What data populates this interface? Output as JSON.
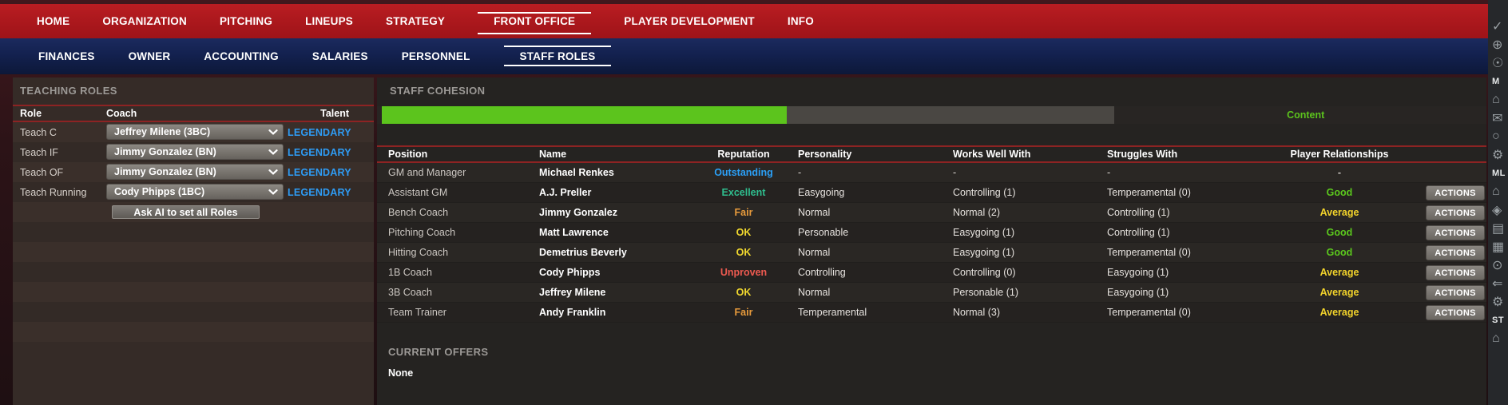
{
  "colors": {
    "nav_red": "#b91d22",
    "nav_navy": "#13214f",
    "sep_red": "#8d2323",
    "panel_left": "#352b27",
    "panel_right": "#252321",
    "bar_green": "#5cc41d",
    "bar_track": "#4a4743",
    "content_green": "#5cc41d",
    "legendary_blue": "#2e9cf5",
    "title_gray": "#9c9996"
  },
  "nav_primary": {
    "items": [
      {
        "label": "HOME"
      },
      {
        "label": "ORGANIZATION"
      },
      {
        "label": "PITCHING"
      },
      {
        "label": "LINEUPS"
      },
      {
        "label": "STRATEGY"
      },
      {
        "label": "FRONT OFFICE",
        "active": true
      },
      {
        "label": "PLAYER DEVELOPMENT"
      },
      {
        "label": "INFO"
      }
    ]
  },
  "nav_secondary": {
    "items": [
      {
        "label": "FINANCES"
      },
      {
        "label": "OWNER"
      },
      {
        "label": "ACCOUNTING"
      },
      {
        "label": "SALARIES"
      },
      {
        "label": "PERSONNEL"
      },
      {
        "label": "STAFF ROLES",
        "active": true
      }
    ]
  },
  "teaching_roles": {
    "title": "TEACHING ROLES",
    "columns": {
      "role": "Role",
      "coach": "Coach",
      "talent": "Talent"
    },
    "rows": [
      {
        "role": "Teach C",
        "coach": "Jeffrey Milene (3BC)",
        "talent": "LEGENDARY"
      },
      {
        "role": "Teach IF",
        "coach": "Jimmy Gonzalez (BN)",
        "talent": "LEGENDARY"
      },
      {
        "role": "Teach OF",
        "coach": "Jimmy Gonzalez (BN)",
        "talent": "LEGENDARY"
      },
      {
        "role": "Teach Running",
        "coach": "Cody Phipps (1BC)",
        "talent": "LEGENDARY"
      }
    ],
    "ai_button": "Ask AI to set all Roles"
  },
  "staff_cohesion": {
    "title": "STAFF COHESION",
    "bar": {
      "fill_pct": 36.8,
      "track_pct": 29.8,
      "status_label": "Content"
    }
  },
  "staff_table": {
    "columns": {
      "position": "Position",
      "name": "Name",
      "reputation": "Reputation",
      "personality": "Personality",
      "works_well_with": "Works Well With",
      "struggles_with": "Struggles With",
      "player_relationships": "Player Relationships"
    },
    "actions_label": "ACTIONS",
    "rows": [
      {
        "position": "GM and Manager",
        "name": "Michael Renkes",
        "reputation": "Outstanding",
        "reputation_color": "#2ba0f7",
        "personality": "-",
        "works_well_with": "-",
        "struggles_with": "-",
        "player_relationships": "-",
        "relationship_color": "#c9c5c1",
        "actions": false
      },
      {
        "position": "Assistant GM",
        "name": "A.J. Preller",
        "reputation": "Excellent",
        "reputation_color": "#2fbe8e",
        "personality": "Easygoing",
        "works_well_with": "Controlling (1)",
        "struggles_with": "Temperamental (0)",
        "player_relationships": "Good",
        "relationship_color": "#5bc71d",
        "actions": true
      },
      {
        "position": "Bench Coach",
        "name": "Jimmy Gonzalez",
        "reputation": "Fair",
        "reputation_color": "#e89b3c",
        "personality": "Normal",
        "works_well_with": "Normal (2)",
        "struggles_with": "Controlling (1)",
        "player_relationships": "Average",
        "relationship_color": "#f2d32b",
        "actions": true
      },
      {
        "position": "Pitching Coach",
        "name": "Matt Lawrence",
        "reputation": "OK",
        "reputation_color": "#f2d92e",
        "personality": "Personable",
        "works_well_with": "Easygoing (1)",
        "struggles_with": "Controlling (1)",
        "player_relationships": "Good",
        "relationship_color": "#5bc71d",
        "actions": true
      },
      {
        "position": "Hitting Coach",
        "name": "Demetrius Beverly",
        "reputation": "OK",
        "reputation_color": "#f2d92e",
        "personality": "Normal",
        "works_well_with": "Easygoing (1)",
        "struggles_with": "Temperamental (0)",
        "player_relationships": "Good",
        "relationship_color": "#5bc71d",
        "actions": true
      },
      {
        "position": "1B Coach",
        "name": "Cody Phipps",
        "reputation": "Unproven",
        "reputation_color": "#ee5a50",
        "personality": "Controlling",
        "works_well_with": "Controlling (0)",
        "struggles_with": "Easygoing (1)",
        "player_relationships": "Average",
        "relationship_color": "#f2d32b",
        "actions": true
      },
      {
        "position": "3B Coach",
        "name": "Jeffrey Milene",
        "reputation": "OK",
        "reputation_color": "#f2d92e",
        "personality": "Normal",
        "works_well_with": "Personable (1)",
        "struggles_with": "Easygoing (1)",
        "player_relationships": "Average",
        "relationship_color": "#f2d32b",
        "actions": true
      },
      {
        "position": "Team Trainer",
        "name": "Andy Franklin",
        "reputation": "Fair",
        "reputation_color": "#e89b3c",
        "personality": "Temperamental",
        "works_well_with": "Normal (3)",
        "struggles_with": "Temperamental (0)",
        "player_relationships": "Average",
        "relationship_color": "#f2d32b",
        "actions": true
      }
    ]
  },
  "current_offers": {
    "title": "CURRENT OFFERS",
    "value": "None"
  },
  "dock": {
    "items": [
      {
        "kind": "icon",
        "name": "check-icon",
        "glyph": "✓"
      },
      {
        "kind": "icon",
        "name": "globe-icon",
        "glyph": "⊕"
      },
      {
        "kind": "icon",
        "name": "bulb-icon",
        "glyph": "☉"
      },
      {
        "kind": "label",
        "name": "dock-section-label-m",
        "text": "M"
      },
      {
        "kind": "icon",
        "name": "home-icon",
        "glyph": "⌂"
      },
      {
        "kind": "icon",
        "name": "mail-icon",
        "glyph": "✉"
      },
      {
        "kind": "icon",
        "name": "search-icon",
        "glyph": "○"
      },
      {
        "kind": "icon",
        "name": "gear-icon",
        "glyph": "⚙"
      },
      {
        "kind": "label",
        "name": "dock-section-label-ml",
        "text": "ML"
      },
      {
        "kind": "icon",
        "name": "home-icon",
        "glyph": "⌂"
      },
      {
        "kind": "icon",
        "name": "location-icon",
        "glyph": "◈"
      },
      {
        "kind": "icon",
        "name": "card-icon",
        "glyph": "▤"
      },
      {
        "kind": "icon",
        "name": "chart-icon",
        "glyph": "▦"
      },
      {
        "kind": "icon",
        "name": "binoculars-icon",
        "glyph": "⊙"
      },
      {
        "kind": "icon",
        "name": "arrows-icon",
        "glyph": "⇐"
      },
      {
        "kind": "icon",
        "name": "gear-icon",
        "glyph": "⚙"
      },
      {
        "kind": "label",
        "name": "dock-section-label-st",
        "text": "ST"
      },
      {
        "kind": "icon",
        "name": "home-icon",
        "glyph": "⌂"
      }
    ]
  }
}
